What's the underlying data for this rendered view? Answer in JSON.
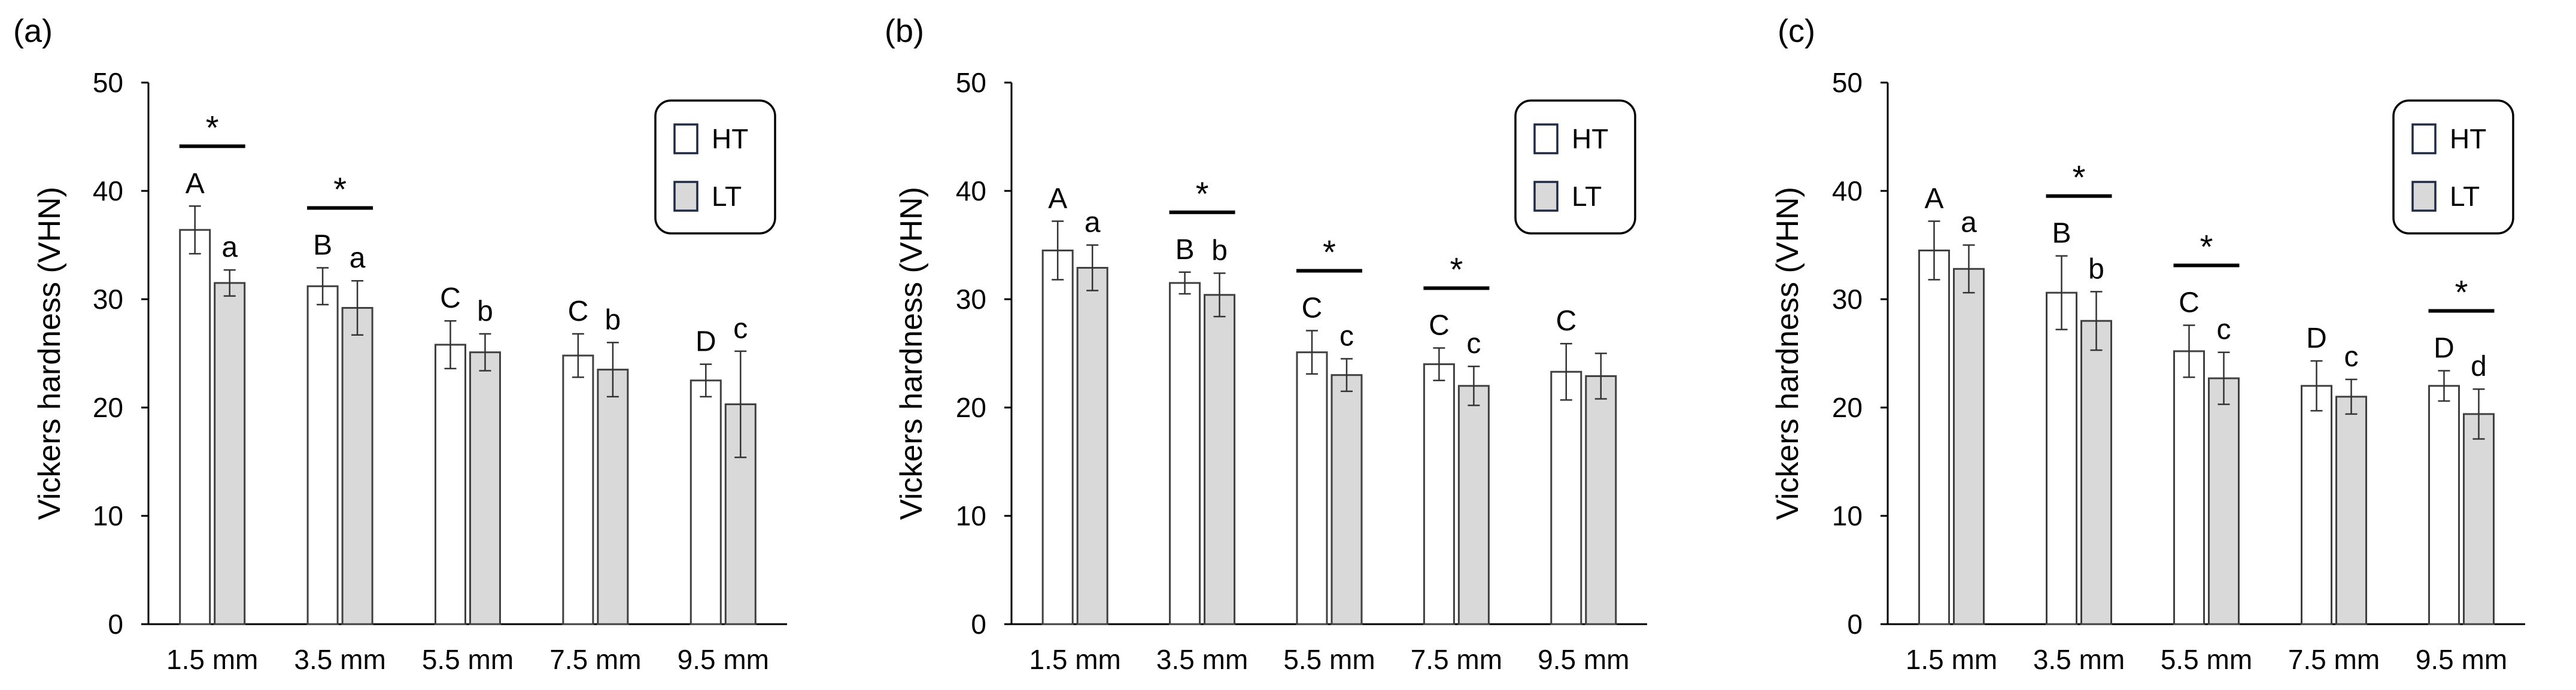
{
  "chart_data": [
    {
      "panel_label": "(a)",
      "type": "bar",
      "ylabel": "Vickers hardness (VHN)",
      "ylim": [
        0,
        50
      ],
      "yticks": [
        "0",
        "10",
        "20",
        "30",
        "40",
        "50"
      ],
      "categories": [
        "1.5 mm",
        "3.5 mm",
        "5.5 mm",
        "7.5 mm",
        "9.5 mm"
      ],
      "series": [
        {
          "name": "HT",
          "values": [
            36.4,
            31.2,
            25.8,
            24.8,
            22.5
          ],
          "errors": [
            2.2,
            1.7,
            2.2,
            2.0,
            1.5
          ],
          "letters": [
            "A",
            "B",
            "C",
            "C",
            "D"
          ]
        },
        {
          "name": "LT",
          "values": [
            31.5,
            29.2,
            25.1,
            23.5,
            20.3
          ],
          "errors": [
            1.2,
            2.5,
            1.7,
            2.5,
            4.9
          ],
          "letters": [
            "a",
            "a",
            "b",
            "b",
            "c"
          ]
        }
      ],
      "significance_categories": [
        0,
        1
      ],
      "significance_label": "*",
      "legend": {
        "position": "top-right",
        "entries": [
          "HT",
          "LT"
        ]
      }
    },
    {
      "panel_label": "(b)",
      "type": "bar",
      "ylabel": "Vickers hardness (VHN)",
      "ylim": [
        0,
        50
      ],
      "yticks": [
        "0",
        "10",
        "20",
        "30",
        "40",
        "50"
      ],
      "categories": [
        "1.5 mm",
        "3.5 mm",
        "5.5 mm",
        "7.5 mm",
        "9.5 mm"
      ],
      "series": [
        {
          "name": "HT",
          "values": [
            34.5,
            31.5,
            25.1,
            24.0,
            23.3
          ],
          "errors": [
            2.7,
            1.0,
            2.0,
            1.5,
            2.6
          ],
          "letters": [
            "A",
            "B",
            "C",
            "C",
            "C"
          ]
        },
        {
          "name": "LT",
          "values": [
            32.9,
            30.4,
            23.0,
            22.0,
            22.9
          ],
          "errors": [
            2.1,
            2.0,
            1.5,
            1.8,
            2.1
          ],
          "letters": [
            "a",
            "b",
            "c",
            "c",
            ""
          ]
        }
      ],
      "significance_categories": [
        1,
        2,
        3
      ],
      "significance_label": "*",
      "legend": {
        "position": "top-right",
        "entries": [
          "HT",
          "LT"
        ]
      }
    },
    {
      "panel_label": "(c)",
      "type": "bar",
      "ylabel": "Vickers hardness (VHN)",
      "ylim": [
        0,
        50
      ],
      "yticks": [
        "0",
        "10",
        "20",
        "30",
        "40",
        "50"
      ],
      "categories": [
        "1.5 mm",
        "3.5 mm",
        "5.5 mm",
        "7.5 mm",
        "9.5 mm"
      ],
      "series": [
        {
          "name": "HT",
          "values": [
            34.5,
            30.6,
            25.2,
            22.0,
            22.0
          ],
          "errors": [
            2.7,
            3.4,
            2.4,
            2.3,
            1.4
          ],
          "letters": [
            "A",
            "B",
            "C",
            "D",
            "D"
          ]
        },
        {
          "name": "LT",
          "values": [
            32.8,
            28.0,
            22.7,
            21.0,
            19.4
          ],
          "errors": [
            2.2,
            2.7,
            2.4,
            1.6,
            2.3
          ],
          "letters": [
            "a",
            "b",
            "c",
            "c",
            "d"
          ]
        }
      ],
      "significance_categories": [
        1,
        2,
        4
      ],
      "significance_label": "*",
      "legend": {
        "position": "top-right",
        "entries": [
          "HT",
          "LT"
        ]
      }
    }
  ],
  "colors": {
    "ht_fill": "#ffffff",
    "lt_fill": "#d9d9d9",
    "bar_stroke": "#404040",
    "legend_stroke": "#1f2a44",
    "axis": "#000000"
  }
}
